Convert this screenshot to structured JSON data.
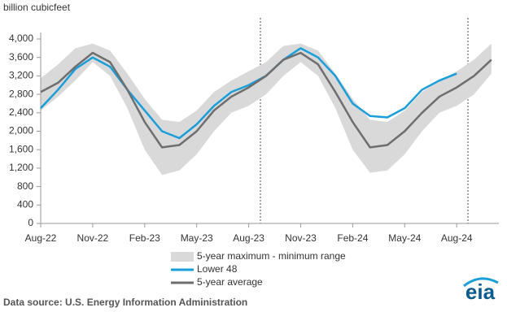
{
  "chart_data": {
    "type": "line",
    "y_axis_label": "billion cubicfeet",
    "categories": [
      "Aug-22",
      null,
      null,
      "Nov-22",
      null,
      null,
      "Feb-23",
      null,
      null,
      "May-23",
      null,
      null,
      "Aug-23",
      null,
      null,
      "Nov-23",
      null,
      null,
      "Feb-24",
      null,
      null,
      "May-24",
      null,
      null,
      "Aug-24",
      null,
      null
    ],
    "ylim": [
      0,
      4000
    ],
    "yticks": [
      0,
      400,
      800,
      {
        "value": 1200,
        "label": "1,200"
      },
      {
        "value": 1600,
        "label": "1,600"
      },
      {
        "value": 2000,
        "label": "2,000"
      },
      {
        "value": 2400,
        "label": "2,400"
      },
      {
        "value": 2800,
        "label": "2,800"
      },
      {
        "value": 3200,
        "label": "3,200"
      },
      {
        "value": 3600,
        "label": "3,600"
      },
      {
        "value": 4000,
        "label": "4,000"
      }
    ],
    "series": [
      {
        "name": "5-year maximum - minimum range",
        "color": "#d9d9d9",
        "high": [
          3150,
          3450,
          3800,
          3900,
          3750,
          3250,
          2700,
          2250,
          2200,
          2450,
          2850,
          3100,
          3300,
          3500,
          3850,
          3900,
          3750,
          3250,
          2700,
          2250,
          2200,
          2450,
          2850,
          3100,
          3300,
          3550,
          3900
        ],
        "low": [
          2450,
          2750,
          3100,
          3500,
          3200,
          2500,
          1600,
          1050,
          1150,
          1500,
          2000,
          2400,
          2550,
          2800,
          3200,
          3500,
          3200,
          2500,
          1600,
          1100,
          1150,
          1500,
          2000,
          2400,
          2550,
          2800,
          3250
        ]
      },
      {
        "name": "Lower 48",
        "color": "#1a9ed9",
        "values": [
          2500,
          2900,
          3350,
          3600,
          3400,
          2900,
          2450,
          2000,
          1850,
          2150,
          2550,
          2850,
          3000,
          3200,
          3550,
          3800,
          3600,
          3200,
          2600,
          2330,
          2300,
          2500,
          2900,
          3100,
          3250,
          null,
          null
        ]
      },
      {
        "name": "5-year average",
        "color": "#6e6e6e",
        "values": [
          2850,
          3050,
          3400,
          3700,
          3500,
          2900,
          2200,
          1650,
          1700,
          2000,
          2450,
          2750,
          2950,
          3200,
          3550,
          3700,
          3450,
          2850,
          2200,
          1650,
          1700,
          2000,
          2400,
          2750,
          2950,
          3200,
          3550
        ]
      }
    ],
    "source": "Data source: U.S. Energy Information Administration",
    "logo": "eia"
  }
}
